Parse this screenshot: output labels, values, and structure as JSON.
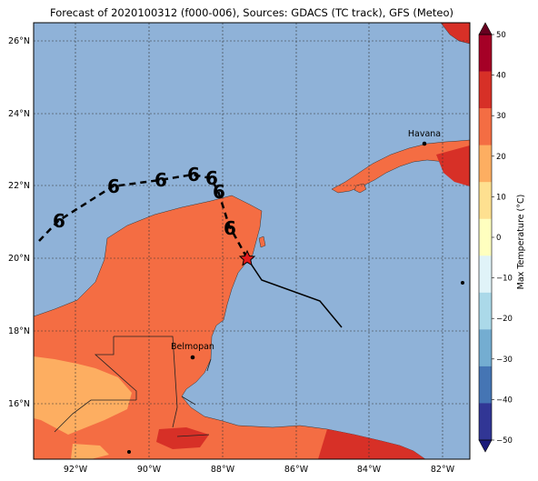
{
  "title": "Forecast of 2020100312 (f000-006), Sources: GDACS (TC track), GFS (Meteo)",
  "map": {
    "lat_ticks": [
      "26°N",
      "24°N",
      "22°N",
      "20°N",
      "18°N",
      "16°N"
    ],
    "lon_ticks": [
      "92°W",
      "90°W",
      "88°W",
      "86°W",
      "84°W",
      "82°W"
    ],
    "cities": [
      {
        "name": "Havana",
        "lon": -82.4,
        "lat": 23.1
      },
      {
        "name": "Belmopan",
        "lon": -88.8,
        "lat": 17.25
      }
    ],
    "colors": {
      "ocean": "#8fb2d8",
      "land_warm": "#f46d43",
      "land_light": "#fdae61",
      "land_hot": "#d73027",
      "track": "#000000",
      "current_position": "#e41a1c"
    }
  },
  "colorbar": {
    "label": "Max Temperature (°C)",
    "ticks": [
      "50",
      "40",
      "30",
      "20",
      "10",
      "0",
      "−10",
      "−20",
      "−30",
      "−40",
      "−50"
    ],
    "colors": [
      "#67001f",
      "#a50026",
      "#d73027",
      "#f46d43",
      "#fdae61",
      "#fee090",
      "#ffffbf",
      "#e0f3f8",
      "#abd9e9",
      "#74add1",
      "#4575b4",
      "#313695",
      "#1a1a7a"
    ]
  }
}
